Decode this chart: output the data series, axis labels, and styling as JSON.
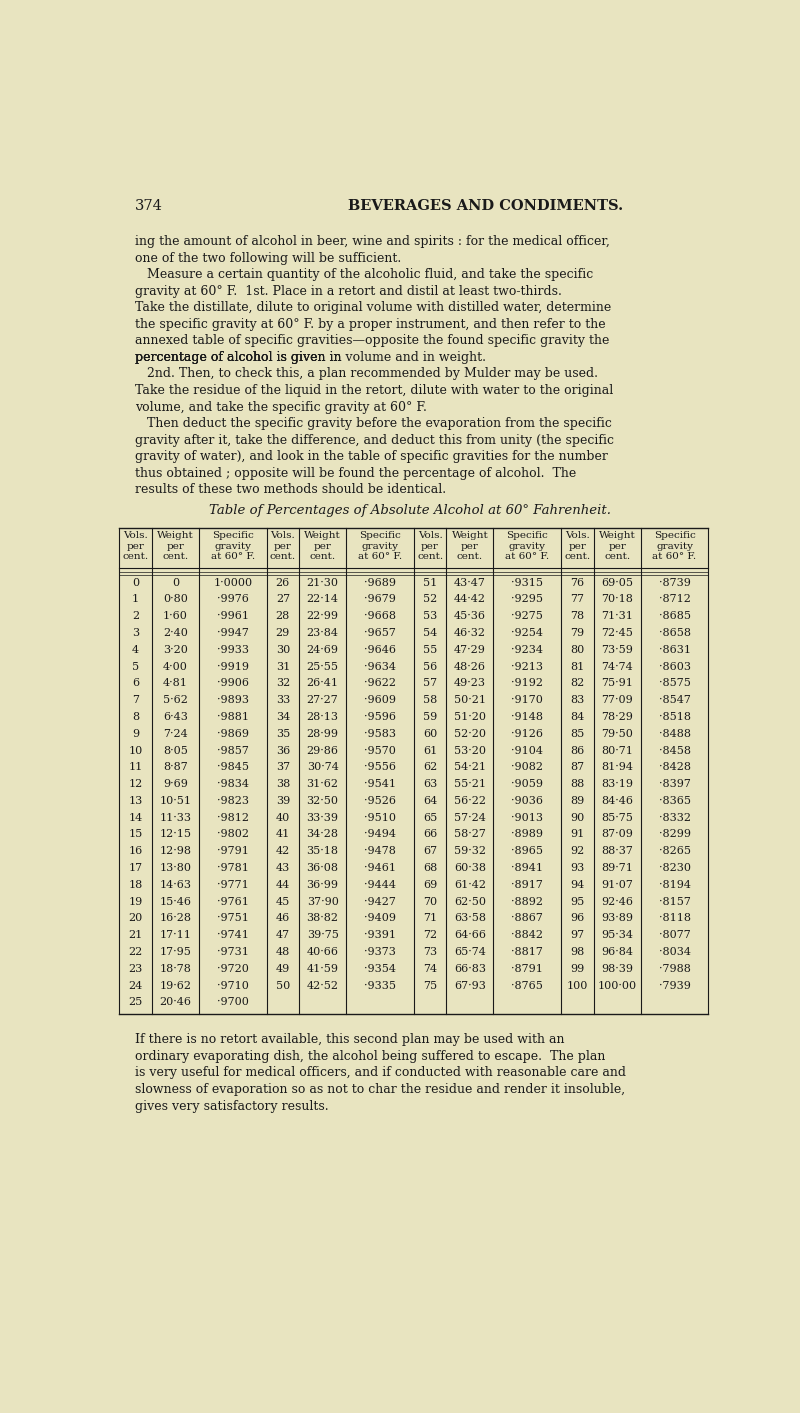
{
  "bg_color": "#e8e4c0",
  "text_color": "#1a1a1a",
  "page_number": "374",
  "header": "BEVERAGES AND CONDIMENTS.",
  "body_text": [
    "ing the amount of alcohol in beer, wine and spirits : for the medical officer,",
    "one of the two following will be sufficient.",
    "   Measure a certain quantity of the alcoholic fluid, and take the specific",
    "gravity at 60° F.  1st. Place in a retort and distil at least two-thirds.",
    "Take the distillate, dilute to original volume with distilled water, determine",
    "the specific gravity at 60° F. by a proper instrument, and then refer to the",
    "annexed table of specific gravities—opposite the found specific gravity the",
    "percentage of alcohol is given in volume and in weight.",
    "   2nd. Then, to check this, a plan recommended by Mulder may be used.",
    "Take the residue of the liquid in the retort, dilute with water to the original",
    "volume, and take the specific gravity at 60° F.",
    "   Then deduct the specific gravity before the evaporation from the specific",
    "gravity after it, take the difference, and deduct this from unity (the specific",
    "gravity of water), and look in the table of specific gravities for the number",
    "thus obtained ; opposite will be found the percentage of alcohol.  The",
    "results of these two methods should be identical."
  ],
  "table_title": "Table of Percentages of Absolute Alcohol at 60° Fahrenheit.",
  "col_headers": [
    "Vols.\nper\ncent.",
    "Weight\nper\ncent.",
    "Specific\ngravity\nat 60° F.",
    "Vols.\nper\ncent.",
    "Weight\nper\ncent.",
    "Specific\ngravity\nat 60° F.",
    "Vols.\nper\ncent.",
    "Weight\nper\ncent.",
    "Specific\ngravity\nat 60° F.",
    "Vols.\nper\ncent.",
    "Weight\nper\ncent.",
    "Specific\ngravity\nat 60° F."
  ],
  "table_data": [
    [
      0,
      "0",
      "1·0000",
      26,
      "21·30",
      "·9689",
      51,
      "43·47",
      "·9315",
      76,
      "69·05",
      "·8739"
    ],
    [
      1,
      "0·80",
      "·9976",
      27,
      "22·14",
      "·9679",
      52,
      "44·42",
      "·9295",
      77,
      "70·18",
      "·8712"
    ],
    [
      2,
      "1·60",
      "·9961",
      28,
      "22·99",
      "·9668",
      53,
      "45·36",
      "·9275",
      78,
      "71·31",
      "·8685"
    ],
    [
      3,
      "2·40",
      "·9947",
      29,
      "23·84",
      "·9657",
      54,
      "46·32",
      "·9254",
      79,
      "72·45",
      "·8658"
    ],
    [
      4,
      "3·20",
      "·9933",
      30,
      "24·69",
      "·9646",
      55,
      "47·29",
      "·9234",
      80,
      "73·59",
      "·8631"
    ],
    [
      5,
      "4·00",
      "·9919",
      31,
      "25·55",
      "·9634",
      56,
      "48·26",
      "·9213",
      81,
      "74·74",
      "·8603"
    ],
    [
      6,
      "4·81",
      "·9906",
      32,
      "26·41",
      "·9622",
      57,
      "49·23",
      "·9192",
      82,
      "75·91",
      "·8575"
    ],
    [
      7,
      "5·62",
      "·9893",
      33,
      "27·27",
      "·9609",
      58,
      "50·21",
      "·9170",
      83,
      "77·09",
      "·8547"
    ],
    [
      8,
      "6·43",
      "·9881",
      34,
      "28·13",
      "·9596",
      59,
      "51·20",
      "·9148",
      84,
      "78·29",
      "·8518"
    ],
    [
      9,
      "7·24",
      "·9869",
      35,
      "28·99",
      "·9583",
      60,
      "52·20",
      "·9126",
      85,
      "79·50",
      "·8488"
    ],
    [
      10,
      "8·05",
      "·9857",
      36,
      "29·86",
      "·9570",
      61,
      "53·20",
      "·9104",
      86,
      "80·71",
      "·8458"
    ],
    [
      11,
      "8·87",
      "·9845",
      37,
      "30·74",
      "·9556",
      62,
      "54·21",
      "·9082",
      87,
      "81·94",
      "·8428"
    ],
    [
      12,
      "9·69",
      "·9834",
      38,
      "31·62",
      "·9541",
      63,
      "55·21",
      "·9059",
      88,
      "83·19",
      "·8397"
    ],
    [
      13,
      "10·51",
      "·9823",
      39,
      "32·50",
      "·9526",
      64,
      "56·22",
      "·9036",
      89,
      "84·46",
      "·8365"
    ],
    [
      14,
      "11·33",
      "·9812",
      40,
      "33·39",
      "·9510",
      65,
      "57·24",
      "·9013",
      90,
      "85·75",
      "·8332"
    ],
    [
      15,
      "12·15",
      "·9802",
      41,
      "34·28",
      "·9494",
      66,
      "58·27",
      "·8989",
      91,
      "87·09",
      "·8299"
    ],
    [
      16,
      "12·98",
      "·9791",
      42,
      "35·18",
      "·9478",
      67,
      "59·32",
      "·8965",
      92,
      "88·37",
      "·8265"
    ],
    [
      17,
      "13·80",
      "·9781",
      43,
      "36·08",
      "·9461",
      68,
      "60·38",
      "·8941",
      93,
      "89·71",
      "·8230"
    ],
    [
      18,
      "14·63",
      "·9771",
      44,
      "36·99",
      "·9444",
      69,
      "61·42",
      "·8917",
      94,
      "91·07",
      "·8194"
    ],
    [
      19,
      "15·46",
      "·9761",
      45,
      "37·90",
      "·9427",
      70,
      "62·50",
      "·8892",
      95,
      "92·46",
      "·8157"
    ],
    [
      20,
      "16·28",
      "·9751",
      46,
      "38·82",
      "·9409",
      71,
      "63·58",
      "·8867",
      96,
      "93·89",
      "·8118"
    ],
    [
      21,
      "17·11",
      "·9741",
      47,
      "39·75",
      "·9391",
      72,
      "64·66",
      "·8842",
      97,
      "95·34",
      "·8077"
    ],
    [
      22,
      "17·95",
      "·9731",
      48,
      "40·66",
      "·9373",
      73,
      "65·74",
      "·8817",
      98,
      "96·84",
      "·8034"
    ],
    [
      23,
      "18·78",
      "·9720",
      49,
      "41·59",
      "·9354",
      74,
      "66·83",
      "·8791",
      99,
      "98·39",
      "·7988"
    ],
    [
      24,
      "19·62",
      "·9710",
      50,
      "42·52",
      "·9335",
      75,
      "67·93",
      "·8765",
      100,
      "100·00",
      "·7939"
    ],
    [
      25,
      "20·46",
      "·9700",
      null,
      null,
      null,
      null,
      null,
      null,
      null,
      null,
      null
    ]
  ],
  "footer_text": [
    "If there is no retort available, this second plan may be used with an",
    "ordinary evaporating dish, the alcohol being suffered to escape.  The plan",
    "is very useful for medical officers, and if conducted with reasonable care and",
    "slowness of evaporation so as not to char the residue and render it insoluble,",
    "gives very satisfactory results."
  ]
}
